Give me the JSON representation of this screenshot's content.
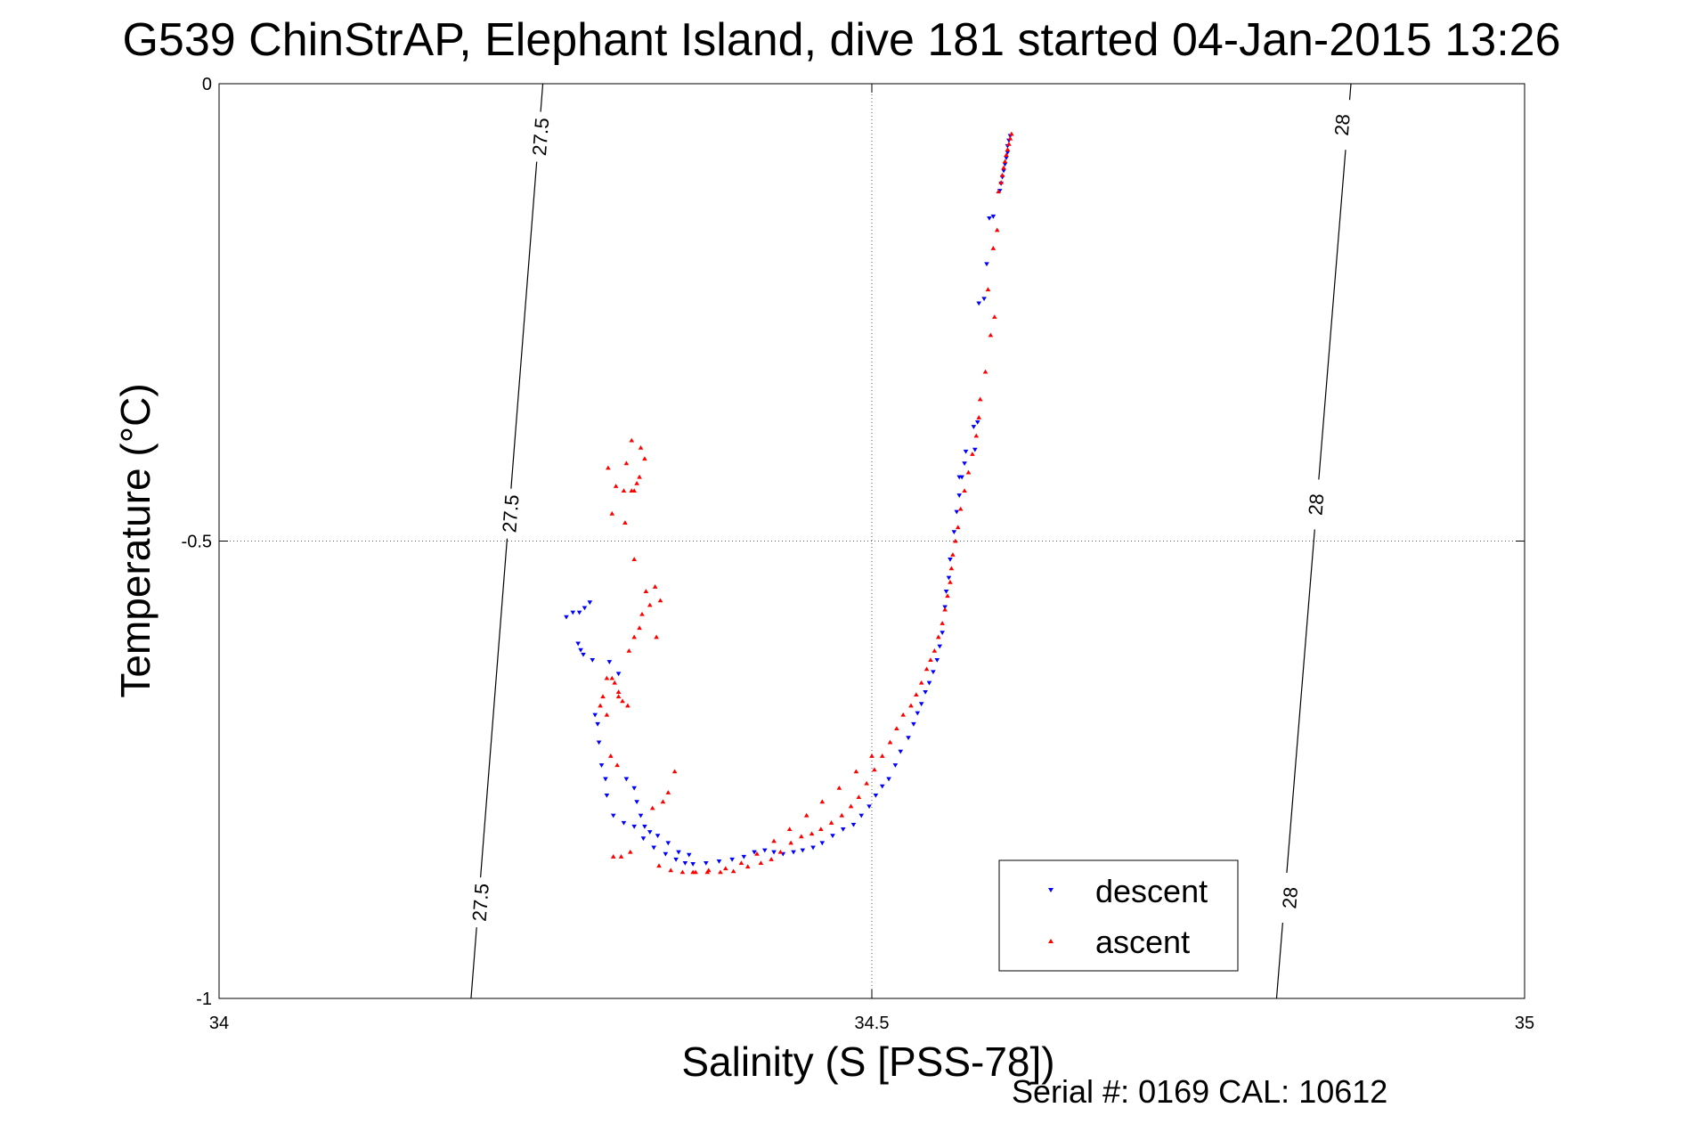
{
  "chart_data": {
    "type": "scatter",
    "title": "G539 ChinStrAP, Elephant Island, dive 181 started 04-Jan-2015 13:26",
    "xlabel": "Salinity (S [PSS-78])",
    "ylabel": "Temperature (°C)",
    "xlim": [
      34,
      35
    ],
    "ylim": [
      -1,
      0
    ],
    "xticks": [
      34,
      34.5,
      35
    ],
    "yticks": [
      -1,
      -0.5,
      0
    ],
    "xtick_labels": [
      "34",
      "34.5",
      "35"
    ],
    "ytick_labels": [
      "-1",
      "-0.5",
      "0"
    ],
    "grid": true,
    "legend_position": "bottom-right",
    "footer": "Serial #: 0169 CAL: 10612",
    "contours": [
      {
        "label": "27.5",
        "points": [
          [
            34.248,
            0.0
          ],
          [
            34.193,
            -1.0
          ]
        ],
        "label_positions": [
          [
            34.246,
            -0.058
          ],
          [
            34.223,
            -0.47
          ],
          [
            34.2,
            -0.895
          ]
        ]
      },
      {
        "label": "28",
        "points": [
          [
            34.867,
            0.0
          ],
          [
            34.81,
            -1.0
          ]
        ],
        "label_positions": [
          [
            34.86,
            -0.045
          ],
          [
            34.84,
            -0.46
          ],
          [
            34.82,
            -0.89
          ]
        ]
      }
    ],
    "series": [
      {
        "name": "descent",
        "color": "#0000ff",
        "marker": "triangle-down",
        "x": [
          34.606,
          34.605,
          34.604,
          34.604,
          34.603,
          34.602,
          34.601,
          34.6,
          34.599,
          34.598,
          34.593,
          34.59,
          34.588,
          34.586,
          34.582,
          34.581,
          34.578,
          34.579,
          34.572,
          34.567,
          34.571,
          34.569,
          34.567,
          34.565,
          34.563,
          34.56,
          34.559,
          34.557,
          34.556,
          34.554,
          34.552,
          34.55,
          34.547,
          34.544,
          34.541,
          34.538,
          34.535,
          34.532,
          34.528,
          34.522,
          34.518,
          34.513,
          34.508,
          34.503,
          34.498,
          34.492,
          34.486,
          34.478,
          34.47,
          34.462,
          34.455,
          34.447,
          34.44,
          34.432,
          34.425,
          34.418,
          34.41,
          34.402,
          34.393,
          34.383,
          34.373,
          34.363,
          34.357,
          34.35,
          34.342,
          34.333,
          34.325,
          34.318,
          34.31,
          34.302,
          34.297,
          34.296,
          34.293,
          34.291,
          34.29,
          34.288,
          34.266,
          34.271,
          34.276,
          34.28,
          34.284,
          34.277,
          34.275,
          34.279,
          34.286,
          34.299,
          34.306,
          34.312,
          34.318,
          34.32,
          34.323,
          34.326,
          34.33,
          34.336,
          34.344,
          34.352,
          34.36
        ],
        "y": [
          -0.057,
          -0.062,
          -0.068,
          -0.075,
          -0.081,
          -0.088,
          -0.095,
          -0.102,
          -0.109,
          -0.117,
          -0.145,
          -0.147,
          -0.197,
          -0.235,
          -0.24,
          -0.37,
          -0.375,
          -0.4,
          -0.402,
          -0.43,
          -0.415,
          -0.43,
          -0.45,
          -0.468,
          -0.49,
          -0.52,
          -0.54,
          -0.555,
          -0.572,
          -0.6,
          -0.615,
          -0.63,
          -0.643,
          -0.655,
          -0.665,
          -0.678,
          -0.688,
          -0.7,
          -0.715,
          -0.73,
          -0.745,
          -0.76,
          -0.768,
          -0.778,
          -0.79,
          -0.8,
          -0.81,
          -0.815,
          -0.822,
          -0.83,
          -0.835,
          -0.838,
          -0.84,
          -0.842,
          -0.84,
          -0.838,
          -0.84,
          -0.845,
          -0.848,
          -0.85,
          -0.852,
          -0.853,
          -0.852,
          -0.848,
          -0.842,
          -0.835,
          -0.825,
          -0.812,
          -0.808,
          -0.8,
          -0.778,
          -0.76,
          -0.745,
          -0.72,
          -0.7,
          -0.69,
          -0.583,
          -0.578,
          -0.578,
          -0.573,
          -0.567,
          -0.619,
          -0.612,
          -0.624,
          -0.63,
          -0.632,
          -0.645,
          -0.76,
          -0.77,
          -0.785,
          -0.8,
          -0.812,
          -0.818,
          -0.822,
          -0.83,
          -0.84,
          -0.843
        ]
      },
      {
        "name": "ascent",
        "color": "#ff0000",
        "marker": "triangle-up",
        "x": [
          34.607,
          34.606,
          34.605,
          34.604,
          34.603,
          34.602,
          34.601,
          34.6,
          34.599,
          34.597,
          34.596,
          34.593,
          34.589,
          34.594,
          34.591,
          34.587,
          34.583,
          34.582,
          34.58,
          34.577,
          34.574,
          34.571,
          34.568,
          34.566,
          34.564,
          34.562,
          34.561,
          34.56,
          34.558,
          34.556,
          34.554,
          34.551,
          34.548,
          34.545,
          34.542,
          34.538,
          34.534,
          34.53,
          34.524,
          34.519,
          34.514,
          34.508,
          34.502,
          34.496,
          34.49,
          34.484,
          34.477,
          34.469,
          34.461,
          34.454,
          34.446,
          34.438,
          34.43,
          34.423,
          34.415,
          34.405,
          34.394,
          34.384,
          34.374,
          34.365,
          34.355,
          34.346,
          34.337,
          34.332,
          34.34,
          34.344,
          34.349,
          34.314,
          34.318,
          34.322,
          34.324,
          34.33,
          34.334,
          34.338,
          34.316,
          34.323,
          34.326,
          34.298,
          34.304,
          34.31,
          34.316,
          34.301,
          34.311,
          34.318,
          34.32,
          34.322,
          34.312,
          34.318,
          34.327,
          34.335,
          34.297,
          34.313,
          34.306,
          34.3,
          34.305,
          34.292,
          34.294,
          34.297,
          34.301,
          34.303,
          34.306,
          34.309,
          34.302,
          34.308,
          34.315,
          34.363,
          34.375,
          34.388,
          34.4,
          34.412,
          34.425,
          34.437,
          34.45,
          34.462,
          34.475,
          34.488,
          34.5
        ],
        "y": [
          -0.055,
          -0.06,
          -0.066,
          -0.072,
          -0.078,
          -0.085,
          -0.092,
          -0.1,
          -0.108,
          -0.118,
          -0.16,
          -0.18,
          -0.225,
          -0.255,
          -0.275,
          -0.315,
          -0.345,
          -0.365,
          -0.385,
          -0.405,
          -0.425,
          -0.445,
          -0.465,
          -0.485,
          -0.5,
          -0.515,
          -0.53,
          -0.545,
          -0.56,
          -0.575,
          -0.59,
          -0.605,
          -0.62,
          -0.63,
          -0.64,
          -0.655,
          -0.668,
          -0.68,
          -0.69,
          -0.705,
          -0.72,
          -0.735,
          -0.75,
          -0.765,
          -0.78,
          -0.79,
          -0.8,
          -0.808,
          -0.815,
          -0.82,
          -0.823,
          -0.83,
          -0.84,
          -0.848,
          -0.852,
          -0.856,
          -0.861,
          -0.862,
          -0.862,
          -0.862,
          -0.862,
          -0.86,
          -0.855,
          -0.792,
          -0.785,
          -0.775,
          -0.752,
          -0.62,
          -0.605,
          -0.595,
          -0.58,
          -0.57,
          -0.55,
          -0.565,
          -0.39,
          -0.398,
          -0.41,
          -0.42,
          -0.44,
          -0.445,
          -0.445,
          -0.47,
          -0.48,
          -0.445,
          -0.437,
          -0.43,
          -0.415,
          -0.52,
          -0.555,
          -0.605,
          -0.69,
          -0.68,
          -0.67,
          -0.735,
          -0.745,
          -0.68,
          -0.67,
          -0.65,
          -0.65,
          -0.655,
          -0.665,
          -0.675,
          -0.845,
          -0.845,
          -0.84,
          -0.862,
          -0.86,
          -0.858,
          -0.852,
          -0.842,
          -0.828,
          -0.815,
          -0.8,
          -0.785,
          -0.77,
          -0.752,
          -0.735
        ]
      }
    ]
  }
}
